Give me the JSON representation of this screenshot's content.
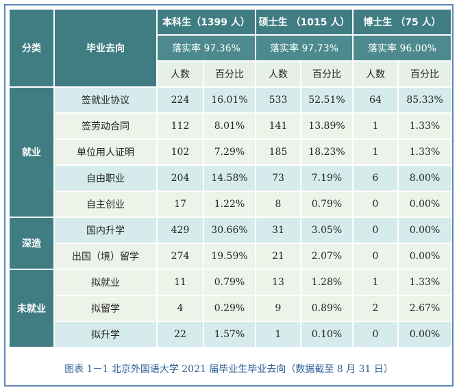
{
  "header": {
    "category": "分类",
    "destination": "毕业去向",
    "groups": [
      {
        "name": "本科生（1399 人）",
        "rate": "落实率 97.36%"
      },
      {
        "name": "硕士生 （1015 人）",
        "rate": "落实率 97.73%"
      },
      {
        "name": "博士生 （75 人）",
        "rate": "落实率 96.00%"
      }
    ],
    "count_label": "人数",
    "pct_label": "百分比"
  },
  "categories": {
    "employed": "就业",
    "further_study": "深造",
    "unemployed": "未就业"
  },
  "rows": [
    {
      "label": "签就业协议",
      "values": [
        "224",
        "16.01%",
        "533",
        "52.51%",
        "64",
        "85.33%"
      ]
    },
    {
      "label": "签劳动合同",
      "values": [
        "112",
        "8.01%",
        "141",
        "13.89%",
        "1",
        "1.33%"
      ]
    },
    {
      "label": "单位用人证明",
      "values": [
        "102",
        "7.29%",
        "185",
        "18.23%",
        "1",
        "1.33%"
      ]
    },
    {
      "label": "自由职业",
      "values": [
        "204",
        "14.58%",
        "73",
        "7.19%",
        "6",
        "8.00%"
      ]
    },
    {
      "label": "自主创业",
      "values": [
        "17",
        "1.22%",
        "8",
        "0.79%",
        "0",
        "0.00%"
      ]
    },
    {
      "label": "国内升学",
      "values": [
        "429",
        "30.66%",
        "31",
        "3.05%",
        "0",
        "0.00%"
      ]
    },
    {
      "label": "出国（境）留学",
      "values": [
        "274",
        "19.59%",
        "21",
        "2.07%",
        "0",
        "0.00%"
      ]
    },
    {
      "label": "拟就业",
      "values": [
        "11",
        "0.79%",
        "13",
        "1.28%",
        "1",
        "1.33%"
      ]
    },
    {
      "label": "拟留学",
      "values": [
        "4",
        "0.29%",
        "9",
        "0.89%",
        "2",
        "2.67%"
      ]
    },
    {
      "label": "拟升学",
      "values": [
        "22",
        "1.57%",
        "1",
        "0.10%",
        "0",
        "0.00%"
      ]
    }
  ],
  "caption": "图表 1－1 北京外国语大学 2021 届毕业生毕业去向（数据截至 8 月 31 日）"
}
